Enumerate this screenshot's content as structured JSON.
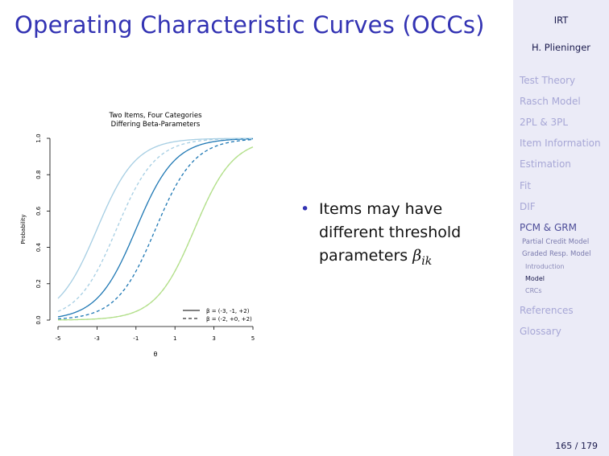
{
  "slide": {
    "title": "Operating Characteristic Curves (OCCs)",
    "bullet_main": "Items may have different threshold parameters ",
    "bullet_symbol": "β",
    "bullet_subscript": "ik",
    "page_number": "165 / 179"
  },
  "sidebar": {
    "short_title": "IRT",
    "author": "H. Plieninger",
    "sections": [
      "Test Theory",
      "Rasch Model",
      "2PL & 3PL",
      "Item Information",
      "Estimation",
      "Fit",
      "DIF",
      "PCM & GRM"
    ],
    "subsections": [
      "Partial Credit Model",
      "Graded Resp. Model"
    ],
    "subsubsections": [
      "Introduction",
      "Model",
      "CRCs"
    ],
    "sections_after": [
      "References",
      "Glossary"
    ]
  },
  "chart_data": {
    "type": "line",
    "title": "Two Items, Four Categories",
    "subtitle": "Differing Beta-Parameters",
    "xlabel": "θ",
    "ylabel": "Probability",
    "xlim": [
      -5,
      5
    ],
    "ylim": [
      0,
      1
    ],
    "x_ticks": [
      "-5",
      "-3",
      "-1",
      "1",
      "3",
      "5"
    ],
    "y_ticks": [
      "0.0",
      "0.2",
      "0.4",
      "0.6",
      "0.8",
      "1.0"
    ],
    "legend": [
      "β = (-3, -1, +2)",
      "β = (-2, +0, +2)"
    ],
    "legend_position": "bottom-right",
    "colors": [
      "#a6cee3",
      "#1f78b4",
      "#b2df8a"
    ],
    "series": [
      {
        "name": "β = (-3, -1, +2)",
        "color": "#a6cee3",
        "dash": false,
        "threshold": -3
      },
      {
        "name": "β = (-3, -1, +2)",
        "color": "#1f78b4",
        "dash": false,
        "threshold": -1
      },
      {
        "name": "β = (-3, -1, +2)",
        "color": "#b2df8a",
        "dash": false,
        "threshold": 2
      },
      {
        "name": "β = (-2, +0, +2)",
        "color": "#a6cee3",
        "dash": true,
        "threshold": -2
      },
      {
        "name": "β = (-2, +0, +2)",
        "color": "#1f78b4",
        "dash": true,
        "threshold": 0
      },
      {
        "name": "β = (-2, +0, +2)",
        "color": "#b2df8a",
        "dash": true,
        "threshold": 2
      }
    ]
  }
}
